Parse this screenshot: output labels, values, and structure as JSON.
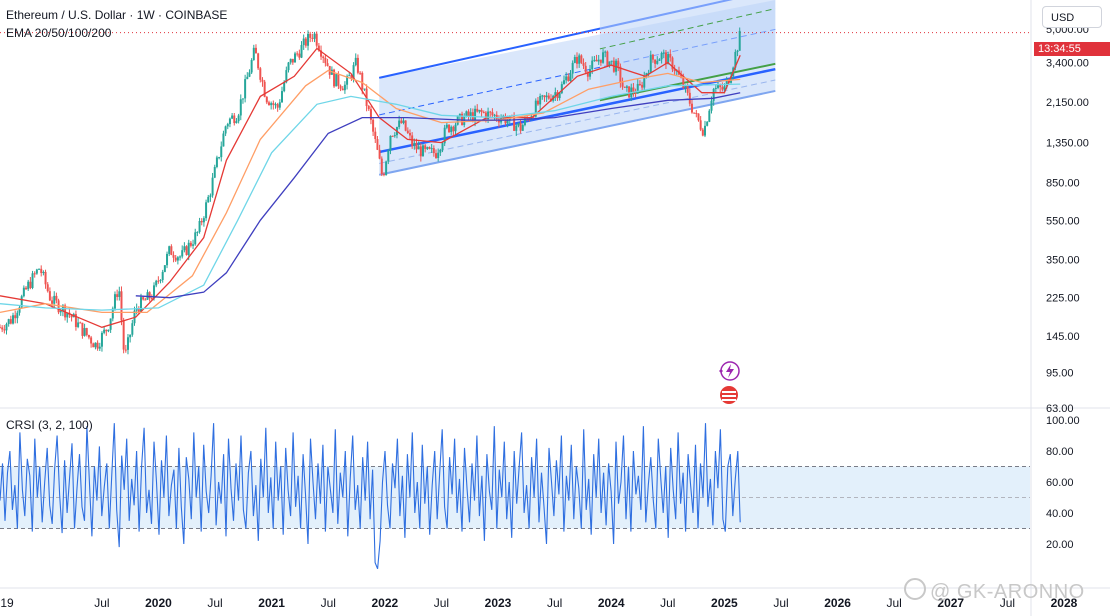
{
  "header": {
    "title": "Ethereum / U.S. Dollar · 1W · COINBASE",
    "indicator": "EMA 20/50/100/200"
  },
  "currency_button": "USD",
  "price_tag": "13:34:55",
  "watermark": "@ GK-ARONNO",
  "rsi_panel": {
    "title": "CRSI (3, 2, 100)"
  },
  "colors": {
    "bull": "#26a69a",
    "bear": "#ef5350",
    "channel_fill": "#bcd4f7",
    "ema20": "#e53935",
    "ema50": "#ff9e66",
    "ema100": "#6fd6e8",
    "ema200": "#3f3fbf",
    "channel_line": "#2962ff",
    "green_line": "#43a047",
    "rsi_line": "#2f6fe0"
  },
  "chart_data": [
    {
      "type": "candlestick",
      "title": "Ethereum / U.S. Dollar · 1W · COINBASE",
      "scale": "log",
      "ylim": [
        63,
        7000
      ],
      "y_ticks": [
        "5,000.00",
        "3,400.00",
        "2,150.00",
        "1,350.00",
        "850.00",
        "550.00",
        "350.00",
        "225.00",
        "145.00",
        "95.00",
        "63.00"
      ],
      "x_ticks": [
        "19",
        "Jul",
        "2020",
        "Jul",
        "2021",
        "Jul",
        "2022",
        "Jul",
        "2023",
        "Jul",
        "2024",
        "Jul",
        "2025",
        "Jul",
        "2026",
        "Jul",
        "2027",
        "Jul",
        "2028"
      ],
      "x_range_years": [
        2019.1,
        2028.2
      ],
      "price_path": [
        [
          2019.1,
          160
        ],
        [
          2019.2,
          175
        ],
        [
          2019.35,
          260
        ],
        [
          2019.45,
          320
        ],
        [
          2019.55,
          220
        ],
        [
          2019.7,
          190
        ],
        [
          2019.85,
          150
        ],
        [
          2019.95,
          130
        ],
        [
          2020.05,
          160
        ],
        [
          2020.15,
          260
        ],
        [
          2020.2,
          110
        ],
        [
          2020.3,
          200
        ],
        [
          2020.45,
          235
        ],
        [
          2020.6,
          390
        ],
        [
          2020.7,
          360
        ],
        [
          2020.85,
          480
        ],
        [
          2020.95,
          740
        ],
        [
          2021.1,
          1700
        ],
        [
          2021.2,
          1900
        ],
        [
          2021.35,
          3900
        ],
        [
          2021.45,
          2300
        ],
        [
          2021.55,
          2000
        ],
        [
          2021.65,
          3300
        ],
        [
          2021.8,
          4300
        ],
        [
          2021.87,
          4800
        ],
        [
          2021.95,
          3800
        ],
        [
          2022.05,
          2800
        ],
        [
          2022.15,
          2600
        ],
        [
          2022.25,
          3400
        ],
        [
          2022.35,
          2000
        ],
        [
          2022.45,
          1100
        ],
        [
          2022.48,
          900
        ],
        [
          2022.55,
          1500
        ],
        [
          2022.65,
          1700
        ],
        [
          2022.75,
          1300
        ],
        [
          2022.85,
          1200
        ],
        [
          2022.95,
          1200
        ],
        [
          2023.05,
          1600
        ],
        [
          2023.2,
          1800
        ],
        [
          2023.35,
          1900
        ],
        [
          2023.55,
          1800
        ],
        [
          2023.7,
          1600
        ],
        [
          2023.85,
          2100
        ],
        [
          2023.95,
          2300
        ],
        [
          2024.05,
          2500
        ],
        [
          2024.2,
          3600
        ],
        [
          2024.3,
          3100
        ],
        [
          2024.42,
          3700
        ],
        [
          2024.55,
          3200
        ],
        [
          2024.62,
          2400
        ],
        [
          2024.75,
          2500
        ],
        [
          2024.85,
          3500
        ],
        [
          2024.95,
          3700
        ],
        [
          2025.05,
          3300
        ],
        [
          2025.15,
          2500
        ],
        [
          2025.25,
          1800
        ],
        [
          2025.32,
          1550
        ],
        [
          2025.4,
          2500
        ],
        [
          2025.5,
          2500
        ],
        [
          2025.55,
          3000
        ],
        [
          2025.6,
          3800
        ],
        [
          2025.64,
          4700
        ]
      ],
      "ema_series": [
        {
          "name": "EMA 20",
          "color": "#e53935",
          "points": [
            [
              2019.1,
              230
            ],
            [
              2019.5,
              210
            ],
            [
              2020.0,
              160
            ],
            [
              2020.3,
              180
            ],
            [
              2020.6,
              270
            ],
            [
              2020.9,
              450
            ],
            [
              2021.1,
              1100
            ],
            [
              2021.4,
              2300
            ],
            [
              2021.7,
              2900
            ],
            [
              2021.9,
              4000
            ],
            [
              2022.2,
              3000
            ],
            [
              2022.45,
              1800
            ],
            [
              2022.7,
              1400
            ],
            [
              2023.0,
              1350
            ],
            [
              2023.4,
              1800
            ],
            [
              2023.8,
              1800
            ],
            [
              2024.2,
              2900
            ],
            [
              2024.5,
              3300
            ],
            [
              2024.8,
              2900
            ],
            [
              2025.0,
              3400
            ],
            [
              2025.3,
              2400
            ],
            [
              2025.5,
              2400
            ],
            [
              2025.64,
              3700
            ]
          ]
        },
        {
          "name": "EMA 50",
          "color": "#ff9e66",
          "points": [
            [
              2019.1,
              190
            ],
            [
              2019.5,
              210
            ],
            [
              2020.0,
              190
            ],
            [
              2020.4,
              190
            ],
            [
              2020.8,
              290
            ],
            [
              2021.1,
              600
            ],
            [
              2021.4,
              1400
            ],
            [
              2021.8,
              2600
            ],
            [
              2022.0,
              3100
            ],
            [
              2022.3,
              2700
            ],
            [
              2022.6,
              2000
            ],
            [
              2023.0,
              1700
            ],
            [
              2023.5,
              1750
            ],
            [
              2023.9,
              1900
            ],
            [
              2024.3,
              2500
            ],
            [
              2024.7,
              2800
            ],
            [
              2025.0,
              3000
            ],
            [
              2025.3,
              2700
            ],
            [
              2025.64,
              2800
            ]
          ]
        },
        {
          "name": "EMA 100",
          "color": "#6fd6e8",
          "points": [
            [
              2019.1,
              210
            ],
            [
              2019.5,
              200
            ],
            [
              2020.0,
              195
            ],
            [
              2020.5,
              200
            ],
            [
              2020.9,
              260
            ],
            [
              2021.2,
              550
            ],
            [
              2021.5,
              1200
            ],
            [
              2021.9,
              2100
            ],
            [
              2022.2,
              2300
            ],
            [
              2022.6,
              2100
            ],
            [
              2023.0,
              1850
            ],
            [
              2023.5,
              1800
            ],
            [
              2024.0,
              1950
            ],
            [
              2024.5,
              2300
            ],
            [
              2025.0,
              2600
            ],
            [
              2025.64,
              2650
            ]
          ]
        },
        {
          "name": "EMA 200",
          "color": "#3f3fbf",
          "points": [
            [
              2020.3,
              230
            ],
            [
              2020.6,
              225
            ],
            [
              2020.9,
              240
            ],
            [
              2021.1,
              300
            ],
            [
              2021.4,
              550
            ],
            [
              2021.7,
              900
            ],
            [
              2022.0,
              1500
            ],
            [
              2022.3,
              1800
            ],
            [
              2022.7,
              1800
            ],
            [
              2023.2,
              1750
            ],
            [
              2023.6,
              1750
            ],
            [
              2024.0,
              1800
            ],
            [
              2024.5,
              2000
            ],
            [
              2025.0,
              2200
            ],
            [
              2025.4,
              2250
            ],
            [
              2025.64,
              2400
            ]
          ]
        }
      ],
      "channels": [
        {
          "name": "lower channel",
          "lower": [
            [
              2022.45,
              930
            ],
            [
              2025.95,
              2450
            ]
          ],
          "mid": [
            [
              2022.45,
              1210
            ],
            [
              2025.95,
              3150
            ]
          ],
          "upper": [
            [
              2022.45,
              2850
            ],
            [
              2025.95,
              7900
            ]
          ]
        },
        {
          "name": "upper channel",
          "lower": [
            [
              2024.4,
              2200
            ],
            [
              2025.95,
              3350
            ]
          ],
          "upper": [
            [
              2024.4,
              7200
            ],
            [
              2025.95,
              12000
            ]
          ]
        }
      ],
      "last_price_line": 4800
    },
    {
      "type": "line",
      "title": "CRSI (3, 2, 100)",
      "ylim": [
        0,
        100
      ],
      "y_ticks": [
        "100.00",
        "80.00",
        "60.00",
        "40.00",
        "20.00"
      ],
      "bands": {
        "upper": 70,
        "middle": 50,
        "lower": 30
      },
      "series": [
        {
          "color": "#2f6fe0",
          "x_range_years": [
            2019.1,
            2025.64
          ],
          "values": [
            48,
            72,
            35,
            66,
            80,
            42,
            58,
            30,
            92,
            55,
            38,
            75,
            64,
            28,
            88,
            50,
            70,
            34,
            60,
            82,
            45,
            33,
            68,
            90,
            52,
            27,
            74,
            40,
            63,
            85,
            30,
            56,
            78,
            44,
            35,
            96,
            60,
            25,
            70,
            48,
            83,
            38,
            57,
            72,
            30,
            65,
            98,
            42,
            18,
            77,
            55,
            88,
            35,
            62,
            45,
            80,
            28,
            70,
            95,
            40,
            55,
            33,
            86,
            60,
            26,
            74,
            50,
            90,
            38,
            58,
            68,
            30,
            82,
            44,
            20,
            76,
            62,
            36,
            92,
            50,
            70,
            28,
            84,
            54,
            40,
            64,
            98,
            32,
            60,
            46,
            78,
            25,
            88,
            56,
            35,
            72,
            48,
            90,
            42,
            30,
            66,
            80,
            38,
            58,
            22,
            75,
            50,
            95,
            40,
            63,
            30,
            86,
            48,
            70,
            26,
            82,
            55,
            38,
            92,
            44,
            64,
            30,
            78,
            52,
            20,
            88,
            60,
            36,
            72,
            46,
            84,
            28,
            70,
            55,
            40,
            94,
            33,
            66,
            50,
            80,
            25,
            62,
            90,
            42,
            58,
            30,
            76,
            48,
            86,
            36,
            68,
            8,
            4,
            22,
            60,
            80,
            45,
            30,
            72,
            56,
            88,
            38,
            64,
            24,
            78,
            50,
            92,
            40,
            60,
            30,
            84,
            46,
            70,
            26,
            58,
            80,
            36,
            66,
            94,
            44,
            30,
            76,
            52,
            88,
            40,
            62,
            28,
            82,
            56,
            34,
            72,
            48,
            90,
            38,
            64,
            22,
            78,
            54,
            42,
            96,
            30,
            68,
            50,
            86,
            36,
            60,
            24,
            80,
            46,
            70,
            92,
            40,
            58,
            30,
            76,
            50,
            88,
            34,
            66,
            44,
            20,
            82,
            60,
            38,
            74,
            52,
            90,
            28,
            64,
            48,
            84,
            36,
            70,
            56,
            30,
            94,
            42,
            62,
            26,
            78,
            50,
            88,
            40,
            66,
            32,
            72,
            54,
            20,
            86,
            46,
            60,
            90,
            36,
            70,
            28,
            80,
            52,
            64,
            42,
            96,
            34,
            58,
            76,
            48,
            30,
            88,
            62,
            40,
            70,
            24,
            82,
            55,
            36,
            92,
            46,
            66,
            28,
            78,
            58,
            40,
            84,
            30,
            72,
            50,
            98,
            44,
            62,
            32,
            80,
            56,
            94,
            36,
            28,
            70,
            78,
            38,
            62,
            80,
            34
          ]
        }
      ]
    }
  ]
}
